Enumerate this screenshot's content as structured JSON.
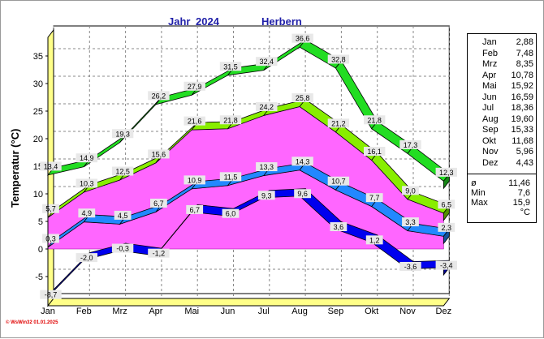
{
  "header": {
    "year_label": "Jahr",
    "year": "2024",
    "station": "Herbern"
  },
  "footer": "© WsWin32  01.01.2025",
  "stats": {
    "months": [
      {
        "m": "Jan",
        "v": "2,88"
      },
      {
        "m": "Feb",
        "v": "7,48"
      },
      {
        "m": "Mrz",
        "v": "8,35"
      },
      {
        "m": "Apr",
        "v": "10,78"
      },
      {
        "m": "Mai",
        "v": "15,92"
      },
      {
        "m": "Jun",
        "v": "16,59"
      },
      {
        "m": "Jul",
        "v": "18,36"
      },
      {
        "m": "Aug",
        "v": "19,60"
      },
      {
        "m": "Sep",
        "v": "15,33"
      },
      {
        "m": "Okt",
        "v": "11,68"
      },
      {
        "m": "Nov",
        "v": "5,96"
      },
      {
        "m": "Dez",
        "v": "4,43"
      }
    ],
    "summary": [
      {
        "k": "ø",
        "v": "11,46"
      },
      {
        "k": "Min",
        "v": "7,6"
      },
      {
        "k": "Max",
        "v": "15,9"
      },
      {
        "k": "",
        "v": "°C"
      }
    ]
  },
  "colors": {
    "max_abs": "#22dd22",
    "max_mean": "#88ee00",
    "mean_band": "#ff66ff",
    "min_mean": "#2288ff",
    "min_abs": "#0000ee",
    "floor": "#ffff88"
  },
  "chart_data": {
    "type": "line",
    "title": "",
    "xlabel": "",
    "ylabel": "Temperatur  (°C)",
    "ylim": [
      -8.7,
      38
    ],
    "yticks": [
      -5,
      0,
      5,
      10,
      15,
      20,
      25,
      30,
      35
    ],
    "categories": [
      "Jan",
      "Feb",
      "Mrz",
      "Apr",
      "Mai",
      "Jun",
      "Jul",
      "Aug",
      "Sep",
      "Okt",
      "Nov",
      "Dez"
    ],
    "series": [
      {
        "values": [
          13.4,
          14.9,
          19.3,
          26.2,
          27.9,
          31.5,
          32.4,
          36.6,
          32.8,
          21.8,
          17.3,
          12.3
        ],
        "labels": [
          "13,4",
          "14,9",
          "19,3",
          "26,2",
          "27,9",
          "31,5",
          "32,4",
          "36,6",
          "32,8",
          "21,8",
          "17,3",
          "12,3"
        ]
      },
      {
        "values": [
          5.7,
          10.3,
          12.5,
          15.6,
          21.6,
          21.8,
          24.2,
          25.8,
          21.2,
          16.1,
          9.0,
          6.5
        ],
        "labels": [
          "5,7",
          "10,3",
          "12,5",
          "15,6",
          "21,6",
          "21,8",
          "24,2",
          "25,8",
          "21,2",
          "16,1",
          "9,0",
          "6,5"
        ]
      },
      {
        "values": [
          2.88,
          7.48,
          8.35,
          10.78,
          15.92,
          16.59,
          18.36,
          19.6,
          15.33,
          11.68,
          5.96,
          4.43
        ]
      },
      {
        "values": [
          0.3,
          4.9,
          4.5,
          6.7,
          10.9,
          11.5,
          13.3,
          14.3,
          10.7,
          7.7,
          3.3,
          2.3
        ],
        "labels": [
          "0,3",
          "4,9",
          "4,5",
          "6,7",
          "10,9",
          "11,5",
          "13,3",
          "14,3",
          "10,7",
          "7,7",
          "3,3",
          "2,3"
        ]
      },
      {
        "values": [
          -8.7,
          -2.0,
          -0.3,
          -1.2,
          6.7,
          6.0,
          9.3,
          9.6,
          3.6,
          1.2,
          -3.6,
          -3.4
        ],
        "labels": [
          "-8,7",
          "-2,0",
          "-0,3",
          "-1,2",
          "6,7",
          "6,0",
          "9,3",
          "9,6",
          "3,6",
          "1,2",
          "-3,6",
          "-3,4"
        ]
      }
    ],
    "grid": true
  }
}
